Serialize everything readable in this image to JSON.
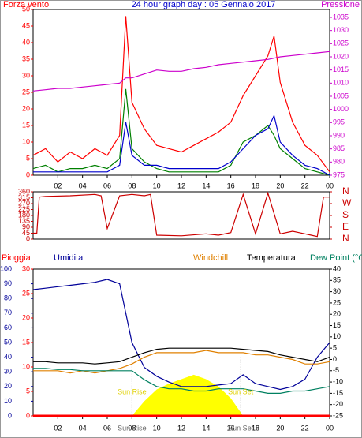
{
  "chart_data": [
    {
      "type": "line",
      "title": "24 hour graph day : 05 Gennaio 2017",
      "ylabel": "Forza vento",
      "y2label": "Pressione",
      "ycolor": "#ff0000",
      "y2color": "#cc00cc",
      "xlim": [
        0,
        24
      ],
      "xticks": [
        {
          "value": 2,
          "label": "02"
        },
        {
          "value": 4,
          "label": "04"
        },
        {
          "value": 6,
          "label": "06"
        },
        {
          "value": 8,
          "label": "08"
        },
        {
          "value": 10,
          "label": "10"
        },
        12,
        14,
        16,
        18,
        20,
        22,
        {
          "value": 24,
          "label": "00"
        }
      ],
      "ylim": [
        0,
        50
      ],
      "yticks": [
        0,
        5,
        10,
        15,
        20,
        25,
        30,
        35,
        40,
        45,
        50
      ],
      "y2lim": [
        975,
        1038
      ],
      "y2ticks": [
        975,
        980,
        985,
        990,
        995,
        1000,
        1005,
        1010,
        1015,
        1020,
        1025,
        1030,
        1035
      ],
      "x": [
        0,
        1,
        2,
        3,
        4,
        5,
        6,
        7,
        7.5,
        8,
        9,
        10,
        11,
        12,
        13,
        14,
        15,
        16,
        17,
        18,
        19,
        19.5,
        20,
        21,
        22,
        23,
        24
      ],
      "series": [
        {
          "color": "#ff0000",
          "values": [
            6,
            8,
            4,
            7,
            5,
            8,
            6,
            12,
            48,
            22,
            14,
            9,
            8,
            7,
            9,
            11,
            13,
            16,
            24,
            30,
            36,
            42,
            28,
            16,
            9,
            6,
            1
          ]
        },
        {
          "color": "#008000",
          "values": [
            2,
            3,
            1,
            2,
            2,
            3,
            2,
            5,
            26,
            8,
            4,
            2,
            1,
            1,
            1,
            1,
            1,
            3,
            10,
            12,
            15,
            12,
            8,
            5,
            2,
            1,
            0
          ]
        },
        {
          "color": "#0000cc",
          "values": [
            1,
            1,
            1,
            1,
            1,
            1,
            1,
            3,
            16,
            6,
            3,
            3,
            2,
            2,
            2,
            2,
            2,
            4,
            8,
            12,
            14,
            18,
            10,
            6,
            3,
            2,
            0
          ]
        },
        {
          "color": "#cc00cc",
          "axis": "y2",
          "values": [
            1007,
            1007.5,
            1008,
            1008,
            1008.5,
            1009,
            1009.5,
            1010,
            1012,
            1012,
            1013.5,
            1015,
            1014.5,
            1014.5,
            1015.5,
            1016,
            1017,
            1017.5,
            1018,
            1018.5,
            1019,
            1019.5,
            1020,
            1020.5,
            1021,
            1021.5,
            1022
          ]
        }
      ]
    },
    {
      "type": "line",
      "ycolor": "#cc0000",
      "y2color": "#cc0000",
      "xlim": [
        0,
        24
      ],
      "ylim": [
        0,
        360
      ],
      "yticks": [
        0,
        45,
        90,
        135,
        180,
        225,
        270,
        315,
        360
      ],
      "y2lim": [
        0,
        360
      ],
      "y2ticks": [
        {
          "value": 360,
          "label": "N"
        },
        {
          "value": 270,
          "label": "W"
        },
        {
          "value": 180,
          "label": "S"
        },
        {
          "value": 90,
          "label": "E"
        },
        {
          "value": 0,
          "label": "N"
        }
      ],
      "x": [
        0,
        0.3,
        0.5,
        1,
        3,
        5,
        5.5,
        6,
        7,
        8,
        9,
        9.5,
        10,
        12,
        14,
        15,
        16,
        17,
        18,
        19,
        20,
        21,
        22,
        22.5,
        23,
        23.5,
        24
      ],
      "series": [
        {
          "color": "#cc0000",
          "values": [
            45,
            45,
            320,
            325,
            330,
            340,
            330,
            80,
            330,
            340,
            330,
            340,
            30,
            25,
            40,
            30,
            50,
            340,
            40,
            350,
            40,
            60,
            40,
            30,
            20,
            320,
            320
          ]
        }
      ]
    },
    {
      "type": "line",
      "ycolor": "#000099",
      "y2color": "#000000",
      "y3color": "#ff0000",
      "xlim": [
        0,
        24
      ],
      "xticks": [
        {
          "value": 2,
          "label": "02"
        },
        {
          "value": 4,
          "label": "04"
        },
        {
          "value": 6,
          "label": "06"
        },
        {
          "value": 8,
          "label": "08"
        },
        {
          "value": 10,
          "label": "10"
        },
        12,
        14,
        16,
        18,
        20,
        22,
        {
          "value": 24,
          "label": "00"
        }
      ],
      "ylim": [
        0,
        100
      ],
      "yticks": [
        0,
        10,
        20,
        30,
        40,
        50,
        60,
        70,
        80,
        90,
        100
      ],
      "y3lim": [
        0,
        30
      ],
      "y3ticks": [
        0,
        5,
        10,
        15,
        20,
        25,
        30
      ],
      "y2lim": [
        -25,
        40
      ],
      "y2ticks": [
        -25,
        -20,
        -15,
        -10,
        -5,
        0,
        5,
        10,
        15,
        20,
        25,
        30,
        35,
        40
      ],
      "x": [
        0,
        1,
        2,
        3,
        4,
        5,
        6,
        7,
        8,
        9,
        10,
        11,
        12,
        13,
        14,
        15,
        16,
        17,
        18,
        19,
        20,
        21,
        22,
        23,
        24
      ],
      "annotations": [
        {
          "text": "Sun Rise",
          "x": 8
        },
        {
          "text": "Sun Set",
          "x": 16.8
        }
      ],
      "series": [
        {
          "type": "area",
          "color": "#ffff00",
          "values": [
            0,
            0,
            0,
            0,
            0,
            0,
            0,
            0,
            0,
            10,
            18,
            22,
            25,
            28,
            25,
            20,
            12,
            0,
            0,
            0,
            0,
            0,
            0,
            0,
            0
          ]
        },
        {
          "name": "Pioggia",
          "color": "#ff0000",
          "axis": "y3",
          "values": [
            0,
            0,
            0,
            0,
            0,
            0,
            0,
            0,
            0,
            0,
            0,
            0,
            0,
            0,
            0,
            0,
            0,
            0,
            0,
            0,
            0,
            0,
            0,
            0,
            0
          ]
        },
        {
          "name": "Umidita",
          "color": "#000099",
          "values": [
            86,
            87,
            88,
            89,
            90,
            91,
            93,
            90,
            50,
            33,
            27,
            23,
            20,
            20,
            20,
            21,
            22,
            28,
            22,
            20,
            18,
            20,
            25,
            40,
            50
          ]
        },
        {
          "name": "Windchill",
          "color": "#e08000",
          "axis": "y2",
          "values": [
            -5,
            -5,
            -5,
            -6,
            -5,
            -6,
            -5,
            -4,
            -2,
            1,
            3,
            3,
            3,
            3,
            4,
            3,
            3,
            3,
            2,
            2,
            1,
            0,
            -2,
            -2,
            -1
          ]
        },
        {
          "name": "Temperatura",
          "color": "#000000",
          "axis": "y2",
          "values": [
            -1,
            -1,
            -1.5,
            -1.5,
            -1.5,
            -2,
            -1.5,
            -1,
            1,
            3,
            4.5,
            5,
            5,
            5,
            5,
            5,
            5,
            4.5,
            4,
            3.5,
            2,
            1,
            0,
            -1,
            1
          ]
        },
        {
          "name": "Dew Point (°C",
          "color": "#008060",
          "axis": "y2",
          "values": [
            -4,
            -4,
            -4.5,
            -4.5,
            -5,
            -5,
            -5,
            -5,
            -5,
            -9,
            -12,
            -13,
            -13,
            -14,
            -14,
            -13,
            -13,
            -13,
            -14,
            -15,
            -15,
            -14,
            -14,
            -13,
            -12
          ]
        }
      ]
    }
  ]
}
